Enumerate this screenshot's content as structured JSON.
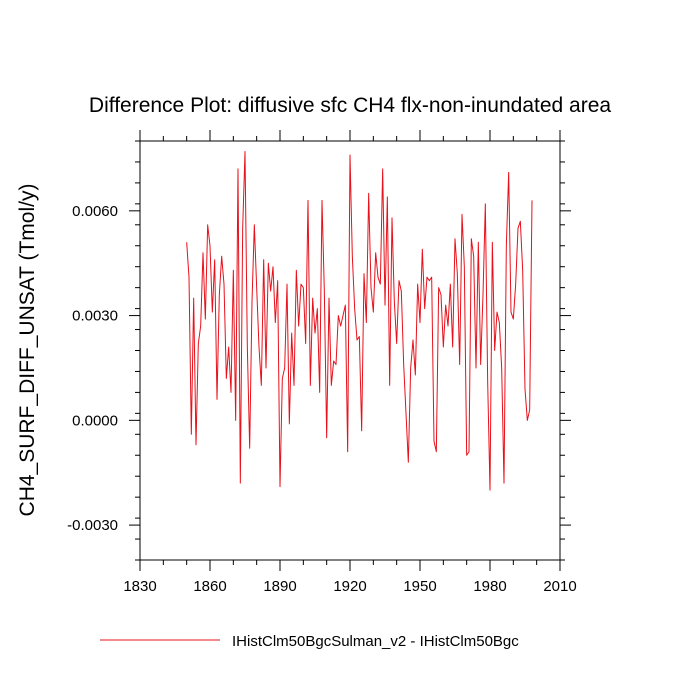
{
  "chart_data": {
    "type": "line",
    "title": "Difference Plot: diffusive sfc CH4 flx-non-inundated area",
    "xlabel": "",
    "ylabel": "CH4_SURF_DIFF_UNSAT  (Tmol/y)",
    "xlim": [
      1830,
      2010
    ],
    "ylim": [
      -0.004,
      0.008
    ],
    "xticks": [
      1830,
      1860,
      1890,
      1920,
      1950,
      1980,
      2010
    ],
    "xtick_labels": [
      "1830",
      "1860",
      "1890",
      "1920",
      "1950",
      "1980",
      "2010"
    ],
    "yticks": [
      -0.003,
      0.0,
      0.003,
      0.006
    ],
    "ytick_labels": [
      "-0.0030",
      "0.0000",
      "0.0030",
      "0.0060"
    ],
    "grid": false,
    "legend_position": "bottom",
    "series": [
      {
        "name": "IHistClm50BgcSulman_v2 - IHistClm50Bgc",
        "color": "#e8101a",
        "x_start": 1850,
        "x_step": 1,
        "values": [
          0.0051,
          0.0041,
          -0.0004,
          0.0035,
          -0.0007,
          0.0022,
          0.0027,
          0.0048,
          0.0029,
          0.0056,
          0.005,
          0.0031,
          0.0046,
          0.0006,
          0.0036,
          0.0047,
          0.0039,
          0.0012,
          0.0021,
          0.0008,
          0.0043,
          0.0,
          0.0072,
          -0.0018,
          0.0055,
          0.0077,
          0.0021,
          -0.0008,
          0.0034,
          0.0056,
          0.0038,
          0.0021,
          0.001,
          0.0046,
          0.0015,
          0.0045,
          0.0037,
          0.0044,
          0.0028,
          0.004,
          -0.0019,
          0.0012,
          0.0015,
          0.0039,
          -0.0001,
          0.0025,
          0.001,
          0.0043,
          0.0027,
          0.0039,
          0.0038,
          0.0022,
          0.0063,
          0.001,
          0.0035,
          0.0025,
          0.0032,
          0.0008,
          0.0063,
          0.0037,
          -0.0005,
          0.0035,
          0.001,
          0.0017,
          0.0016,
          0.003,
          0.0027,
          0.003,
          0.0033,
          -0.0009,
          0.0076,
          0.0047,
          0.0032,
          0.0023,
          0.0024,
          -0.0003,
          0.0042,
          0.0028,
          0.0065,
          0.0038,
          0.0031,
          0.0048,
          0.0041,
          0.0039,
          0.0072,
          0.0033,
          0.0064,
          0.001,
          0.0058,
          0.0034,
          0.0022,
          0.004,
          0.0037,
          0.0016,
          0.0002,
          -0.0012,
          0.0015,
          0.0023,
          0.0013,
          0.0039,
          0.0028,
          0.0049,
          0.0032,
          0.0041,
          0.004,
          0.0041,
          -0.0006,
          -0.0009,
          0.0038,
          0.0036,
          0.0021,
          0.0033,
          0.0027,
          0.0039,
          0.0021,
          0.0052,
          0.0042,
          0.0016,
          0.0059,
          0.0044,
          -0.001,
          -0.0009,
          0.0052,
          0.0047,
          0.0015,
          0.0051,
          0.0016,
          0.0036,
          0.0062,
          0.0011,
          -0.002,
          0.0051,
          0.002,
          0.0031,
          0.0028,
          0.0015,
          -0.0018,
          0.005,
          0.0071,
          0.0031,
          0.0029,
          0.0039,
          0.0055,
          0.0057,
          0.0043,
          0.0009,
          0.0,
          0.0003,
          0.0063
        ]
      }
    ]
  }
}
